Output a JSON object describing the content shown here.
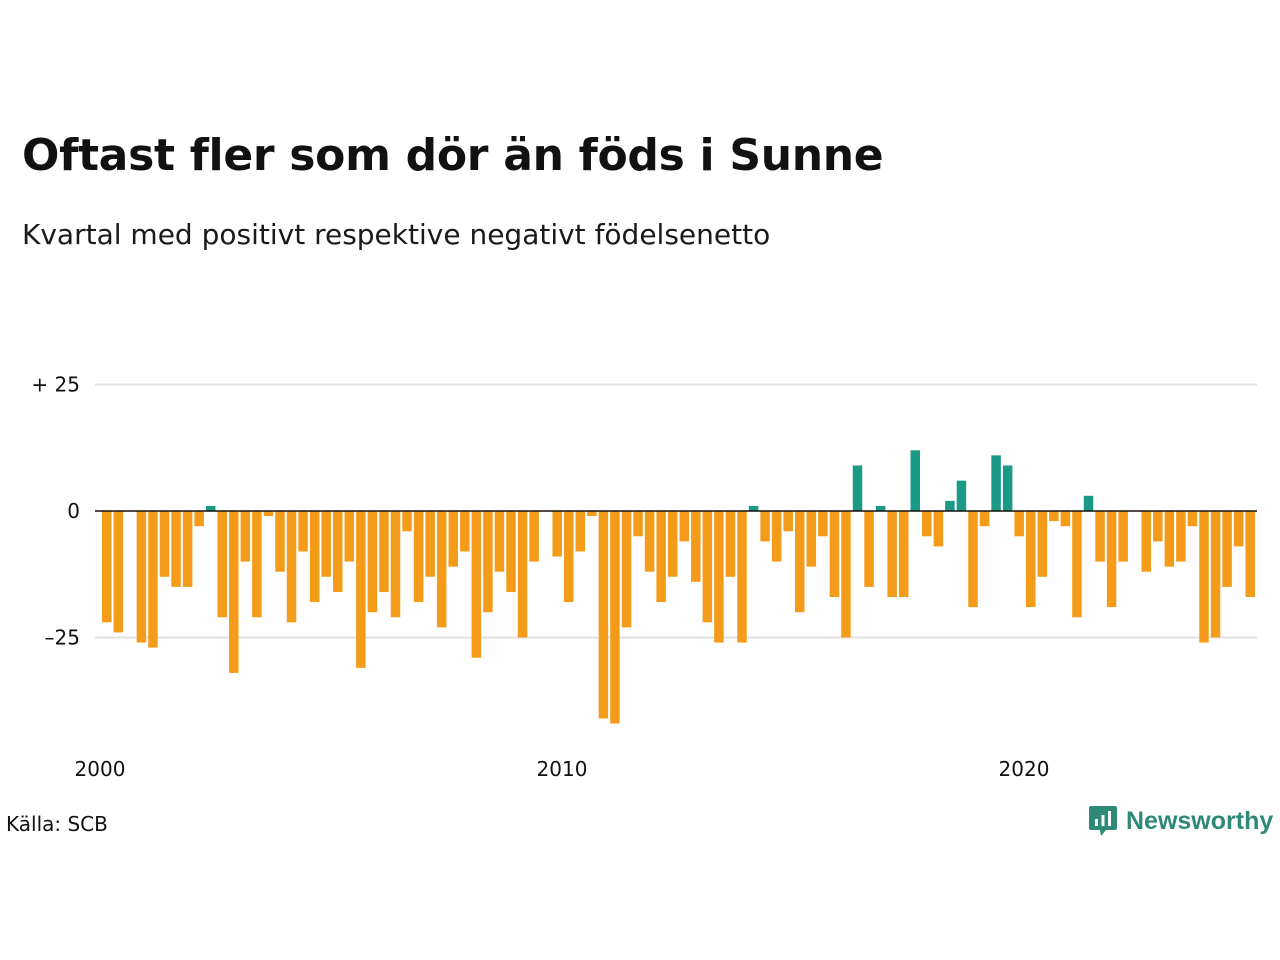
{
  "title": "Oftast fler som dör än föds i Sunne",
  "subtitle": "Kvartal med positivt respektive negativt födelsenetto",
  "source": "Källa: SCB",
  "brand": {
    "name": "Newsworthy",
    "icon": "newsworthy-logo-icon"
  },
  "colors": {
    "positive": "#1a9986",
    "negative": "#f49c1a",
    "grid": "#e2e2e2",
    "zero_line": "#111111"
  },
  "chart_data": {
    "type": "bar",
    "title": "Oftast fler som dör än föds i Sunne",
    "subtitle": "Kvartal med positivt respektive negativt födelsenetto",
    "xlabel": "",
    "ylabel": "",
    "ylim": [
      -42,
      30
    ],
    "y_ticks": [
      {
        "value": 25,
        "label": "+ 25"
      },
      {
        "value": 0,
        "label": "0"
      },
      {
        "value": -25,
        "label": "–25"
      }
    ],
    "x_ticks": [
      {
        "value": 2000,
        "label": "2000"
      },
      {
        "value": 2010,
        "label": "2010"
      },
      {
        "value": 2020,
        "label": "2020"
      }
    ],
    "grid": true,
    "x_start": 2000,
    "values": [
      -22,
      -24,
      0,
      -26,
      -27,
      -13,
      -15,
      -15,
      -3,
      1,
      -21,
      -32,
      -10,
      -21,
      -1,
      -12,
      -22,
      -8,
      -18,
      -13,
      -16,
      -10,
      -31,
      -20,
      -16,
      -21,
      -4,
      -18,
      -13,
      -23,
      -11,
      -8,
      -29,
      -20,
      -12,
      -16,
      -25,
      -10,
      0,
      -9,
      -18,
      -8,
      -1,
      -41,
      -42,
      -23,
      -5,
      -12,
      -18,
      -13,
      -6,
      -14,
      -22,
      -26,
      -13,
      -26,
      1,
      -6,
      -10,
      -4,
      -20,
      -11,
      -5,
      -17,
      -25,
      9,
      -15,
      1,
      -17,
      -17,
      12,
      -5,
      -7,
      2,
      6,
      -19,
      -3,
      11,
      9,
      -5,
      -19,
      -13,
      -2,
      -3,
      -21,
      3,
      -10,
      -19,
      -10,
      0,
      -12,
      -6,
      -11,
      -10,
      -3,
      -26,
      -25,
      -15,
      -7,
      -17
    ]
  }
}
